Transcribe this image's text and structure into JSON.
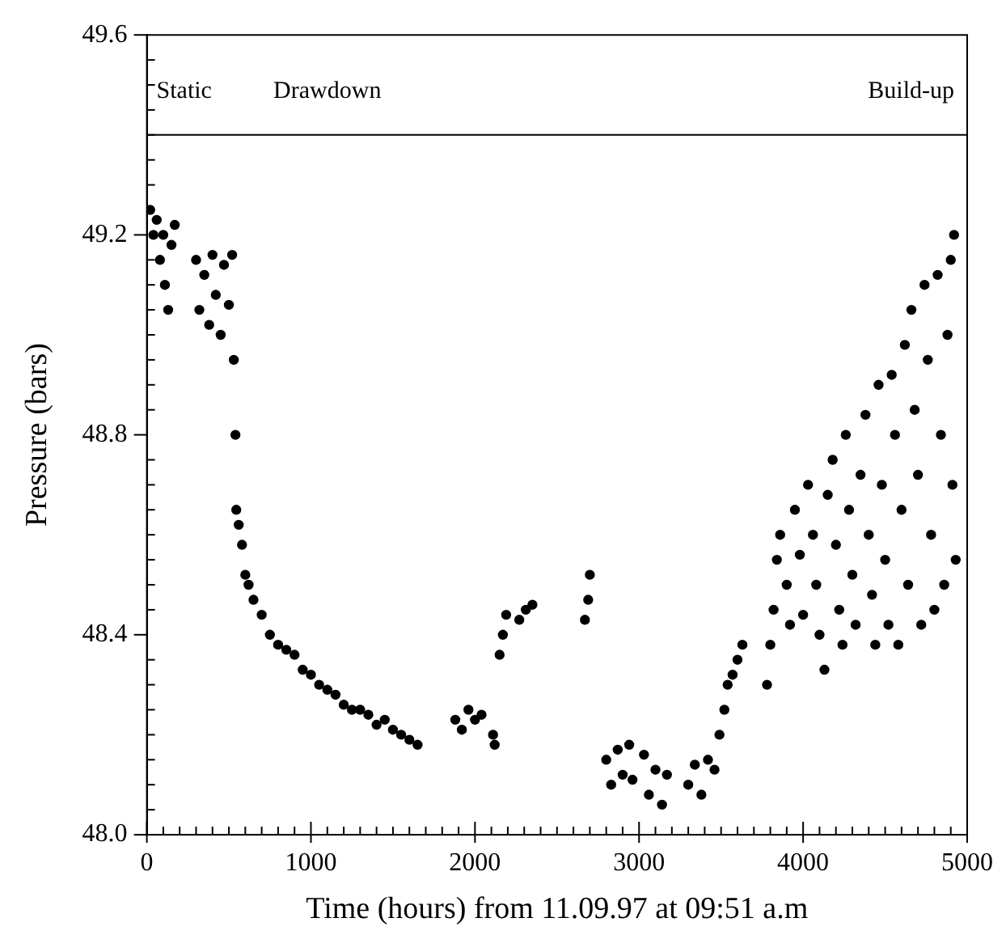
{
  "chart_data": {
    "type": "scatter",
    "xlabel": "Time (hours) from 11.09.97 at 09:51 a.m",
    "ylabel": "Pressure (bars)",
    "xlim": [
      0,
      5000
    ],
    "ylim": [
      48.0,
      49.6
    ],
    "xticks": [
      0,
      {
        "value": 100,
        "label": null
      },
      {
        "value": 200,
        "label": null
      },
      {
        "value": 300,
        "label": null
      },
      {
        "value": 400,
        "label": null
      },
      {
        "value": 500,
        "label": null
      },
      {
        "value": 600,
        "label": null
      },
      {
        "value": 700,
        "label": null
      },
      {
        "value": 800,
        "label": null
      },
      {
        "value": 900,
        "label": null
      },
      1000,
      {
        "value": 1100,
        "label": null
      },
      {
        "value": 1200,
        "label": null
      },
      {
        "value": 1300,
        "label": null
      },
      {
        "value": 1400,
        "label": null
      },
      {
        "value": 1500,
        "label": null
      },
      {
        "value": 1600,
        "label": null
      },
      {
        "value": 1700,
        "label": null
      },
      {
        "value": 1800,
        "label": null
      },
      {
        "value": 1900,
        "label": null
      },
      2000,
      {
        "value": 2100,
        "label": null
      },
      {
        "value": 2200,
        "label": null
      },
      {
        "value": 2300,
        "label": null
      },
      {
        "value": 2400,
        "label": null
      },
      {
        "value": 2500,
        "label": null
      },
      {
        "value": 2600,
        "label": null
      },
      {
        "value": 2700,
        "label": null
      },
      {
        "value": 2800,
        "label": null
      },
      {
        "value": 2900,
        "label": null
      },
      3000,
      {
        "value": 3100,
        "label": null
      },
      {
        "value": 3200,
        "label": null
      },
      {
        "value": 3300,
        "label": null
      },
      {
        "value": 3400,
        "label": null
      },
      {
        "value": 3500,
        "label": null
      },
      {
        "value": 3600,
        "label": null
      },
      {
        "value": 3700,
        "label": null
      },
      {
        "value": 3800,
        "label": null
      },
      {
        "value": 3900,
        "label": null
      },
      4000,
      {
        "value": 4100,
        "label": null
      },
      {
        "value": 4200,
        "label": null
      },
      {
        "value": 4300,
        "label": null
      },
      {
        "value": 4400,
        "label": null
      },
      {
        "value": 4500,
        "label": null
      },
      {
        "value": 4600,
        "label": null
      },
      {
        "value": 4700,
        "label": null
      },
      {
        "value": 4800,
        "label": null
      },
      {
        "value": 4900,
        "label": null
      },
      5000
    ],
    "yticks": [
      {
        "value": 48.0,
        "label": "48.0"
      },
      {
        "value": 48.05,
        "label": null
      },
      {
        "value": 48.1,
        "label": null
      },
      {
        "value": 48.15,
        "label": null
      },
      {
        "value": 48.2,
        "label": null
      },
      {
        "value": 48.25,
        "label": null
      },
      {
        "value": 48.3,
        "label": null
      },
      {
        "value": 48.35,
        "label": null
      },
      48.4,
      {
        "value": 48.45,
        "label": null
      },
      {
        "value": 48.5,
        "label": null
      },
      {
        "value": 48.55,
        "label": null
      },
      {
        "value": 48.6,
        "label": null
      },
      {
        "value": 48.65,
        "label": null
      },
      {
        "value": 48.7,
        "label": null
      },
      {
        "value": 48.75,
        "label": null
      },
      48.8,
      {
        "value": 48.85,
        "label": null
      },
      {
        "value": 48.9,
        "label": null
      },
      {
        "value": 48.95,
        "label": null
      },
      {
        "value": 49.0,
        "label": null
      },
      {
        "value": 49.05,
        "label": null
      },
      {
        "value": 49.1,
        "label": null
      },
      {
        "value": 49.15,
        "label": null
      },
      49.2,
      {
        "value": 49.25,
        "label": null
      },
      {
        "value": 49.3,
        "label": null
      },
      {
        "value": 49.35,
        "label": null
      },
      {
        "value": 49.4,
        "label": null
      },
      {
        "value": 49.45,
        "label": null
      },
      {
        "value": 49.5,
        "label": null
      },
      {
        "value": 49.55,
        "label": null
      },
      49.6
    ],
    "grid": false,
    "legend": false,
    "marker": "circle",
    "ref_lines": [
      {
        "axis": "y",
        "value": 49.4,
        "color": "#000000"
      }
    ],
    "annotations": [
      "Static",
      "Drawdown",
      "Build-up"
    ],
    "series": [
      {
        "color": "#000000",
        "x": [
          20,
          40,
          60,
          80,
          100,
          110,
          130,
          150,
          170,
          300,
          320,
          350,
          380,
          400,
          420,
          450,
          470,
          500,
          520,
          530,
          540,
          545,
          560,
          580,
          600,
          620,
          650,
          700,
          750,
          800,
          850,
          900,
          950,
          1000,
          1050,
          1100,
          1150,
          1200,
          1250,
          1300,
          1350,
          1400,
          1450,
          1500,
          1550,
          1600,
          1650,
          1880,
          1920,
          1960,
          2000,
          2040,
          2110,
          2120,
          2150,
          2170,
          2190,
          2270,
          2310,
          2350,
          2670,
          2690,
          2700,
          2800,
          2830,
          2870,
          2900,
          2940,
          2960,
          3030,
          3060,
          3100,
          3140,
          3170,
          3300,
          3340,
          3380,
          3420,
          3460,
          3490,
          3520,
          3540,
          3570,
          3600,
          3630,
          3780,
          3800,
          3820,
          3840,
          3860,
          3900,
          3920,
          3950,
          3980,
          4000,
          4030,
          4060,
          4080,
          4100,
          4130,
          4150,
          4180,
          4200,
          4220,
          4240,
          4260,
          4280,
          4300,
          4320,
          4350,
          4380,
          4400,
          4420,
          4440,
          4460,
          4480,
          4500,
          4520,
          4540,
          4560,
          4580,
          4600,
          4620,
          4640,
          4660,
          4680,
          4700,
          4720,
          4740,
          4760,
          4780,
          4800,
          4820,
          4840,
          4860,
          4880,
          4900,
          4910,
          4920,
          4930
        ],
        "values": [
          49.25,
          49.2,
          49.23,
          49.15,
          49.2,
          49.1,
          49.05,
          49.18,
          49.22,
          49.15,
          49.05,
          49.12,
          49.02,
          49.16,
          49.08,
          49.0,
          49.14,
          49.06,
          49.16,
          48.95,
          48.8,
          48.65,
          48.62,
          48.58,
          48.52,
          48.5,
          48.47,
          48.44,
          48.4,
          48.38,
          48.37,
          48.36,
          48.33,
          48.32,
          48.3,
          48.29,
          48.28,
          48.26,
          48.25,
          48.25,
          48.24,
          48.22,
          48.23,
          48.21,
          48.2,
          48.19,
          48.18,
          48.23,
          48.21,
          48.25,
          48.23,
          48.24,
          48.2,
          48.18,
          48.36,
          48.4,
          48.44,
          48.43,
          48.45,
          48.46,
          48.43,
          48.47,
          48.52,
          48.15,
          48.1,
          48.17,
          48.12,
          48.18,
          48.11,
          48.16,
          48.08,
          48.13,
          48.06,
          48.12,
          48.1,
          48.14,
          48.08,
          48.15,
          48.13,
          48.2,
          48.25,
          48.3,
          48.32,
          48.35,
          48.38,
          48.3,
          48.38,
          48.45,
          48.55,
          48.6,
          48.5,
          48.42,
          48.65,
          48.56,
          48.44,
          48.7,
          48.6,
          48.5,
          48.4,
          48.33,
          48.68,
          48.75,
          48.58,
          48.45,
          48.38,
          48.8,
          48.65,
          48.52,
          48.42,
          48.72,
          48.84,
          48.6,
          48.48,
          48.38,
          48.9,
          48.7,
          48.55,
          48.42,
          48.92,
          48.8,
          48.38,
          48.65,
          48.98,
          48.5,
          49.05,
          48.85,
          48.72,
          48.42,
          49.1,
          48.95,
          48.6,
          48.45,
          49.12,
          48.8,
          48.5,
          49.0,
          49.15,
          48.7,
          49.2,
          48.55
        ]
      }
    ]
  }
}
